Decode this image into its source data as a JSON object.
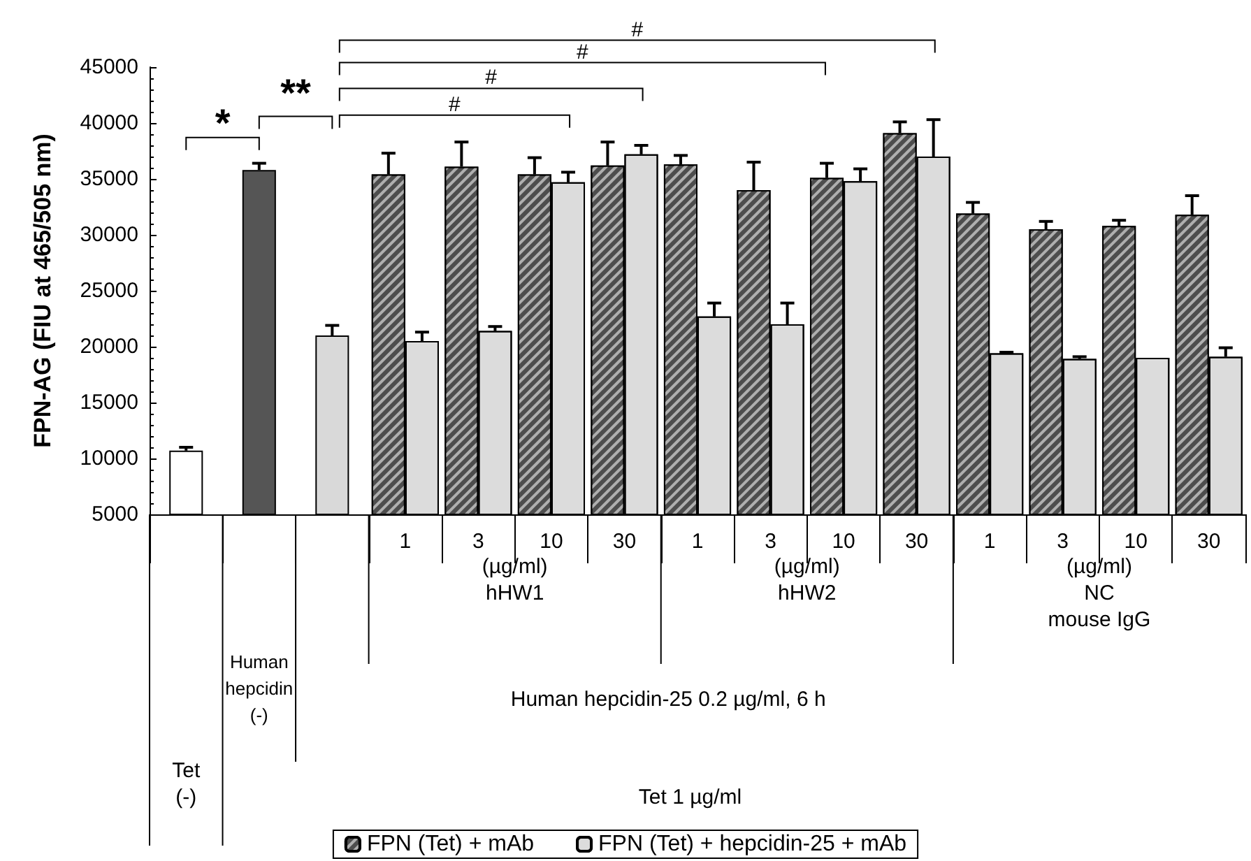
{
  "chart_data": {
    "type": "bar",
    "ylabel": "FPN-AG (FIU at 465/505 nm)",
    "categories": [
      null,
      null,
      null,
      "1",
      "3",
      "10",
      "30",
      "1",
      "3",
      "10",
      "30",
      "1",
      "3",
      "10",
      "30"
    ],
    "series": [
      {
        "colors": [
          "#ffffff",
          "#555555",
          "#d9d9d9",
          null,
          null,
          null,
          null,
          null,
          null,
          null,
          null,
          null,
          null,
          null,
          null
        ],
        "values": [
          10700,
          35800,
          21000,
          null,
          null,
          null,
          null,
          null,
          null,
          null,
          null,
          null,
          null,
          null,
          null
        ],
        "errors": [
          [
            10700,
            11000
          ],
          [
            35800,
            36400
          ],
          [
            21000,
            21900
          ],
          null,
          null,
          null,
          null,
          null,
          null,
          null,
          null,
          null,
          null,
          null,
          null
        ]
      },
      {
        "name": "FPN (Tet) + mAb",
        "color": "#4d4d4d",
        "values": [
          null,
          null,
          null,
          35400,
          36100,
          35400,
          36200,
          36300,
          34000,
          35100,
          39100,
          31900,
          30500,
          30800,
          31800
        ],
        "errors": [
          null,
          null,
          null,
          [
            35400,
            37300
          ],
          [
            36100,
            38300
          ],
          [
            35400,
            36900
          ],
          [
            36200,
            38300
          ],
          [
            36300,
            37100
          ],
          [
            34000,
            36500
          ],
          [
            35100,
            36400
          ],
          [
            39100,
            40100
          ],
          [
            31900,
            32900
          ],
          [
            30500,
            31200
          ],
          [
            30800,
            31300
          ],
          [
            31800,
            33500
          ]
        ]
      },
      {
        "name": "FPN (Tet) + hepcidin-25 + mAb",
        "color": "#dcdcdc",
        "values": [
          null,
          null,
          null,
          20500,
          21400,
          34700,
          37200,
          22700,
          22000,
          34800,
          37000,
          19400,
          18900,
          19000,
          19100
        ],
        "errors": [
          null,
          null,
          null,
          [
            20500,
            21300
          ],
          [
            21400,
            21800
          ],
          [
            34700,
            35600
          ],
          [
            37200,
            38000
          ],
          [
            22700,
            23900
          ],
          [
            22000,
            23900
          ],
          [
            34800,
            35900
          ],
          [
            37000,
            40300
          ],
          [
            19400,
            19500
          ],
          [
            18900,
            19100
          ],
          null,
          [
            19100,
            19900
          ]
        ]
      }
    ],
    "ylim": [
      5000,
      45000
    ],
    "yticks": [
      5000,
      10000,
      15000,
      20000,
      25000,
      30000,
      35000,
      40000,
      45000
    ],
    "grid": false,
    "legend": "bottom",
    "annotations": [
      "*",
      "**",
      "#",
      "#",
      "#",
      "#",
      "(µg/ml)\nhHW1",
      "(µg/ml)\nhHW2",
      "(µg/ml)\nNC\nmouse IgG",
      "Human hepcidin-25 0.2 µg/ml, 6 h",
      "Tet 1 µg/ml",
      "Human\nhepcidin\n(-)",
      "Tet\n(-)"
    ]
  }
}
